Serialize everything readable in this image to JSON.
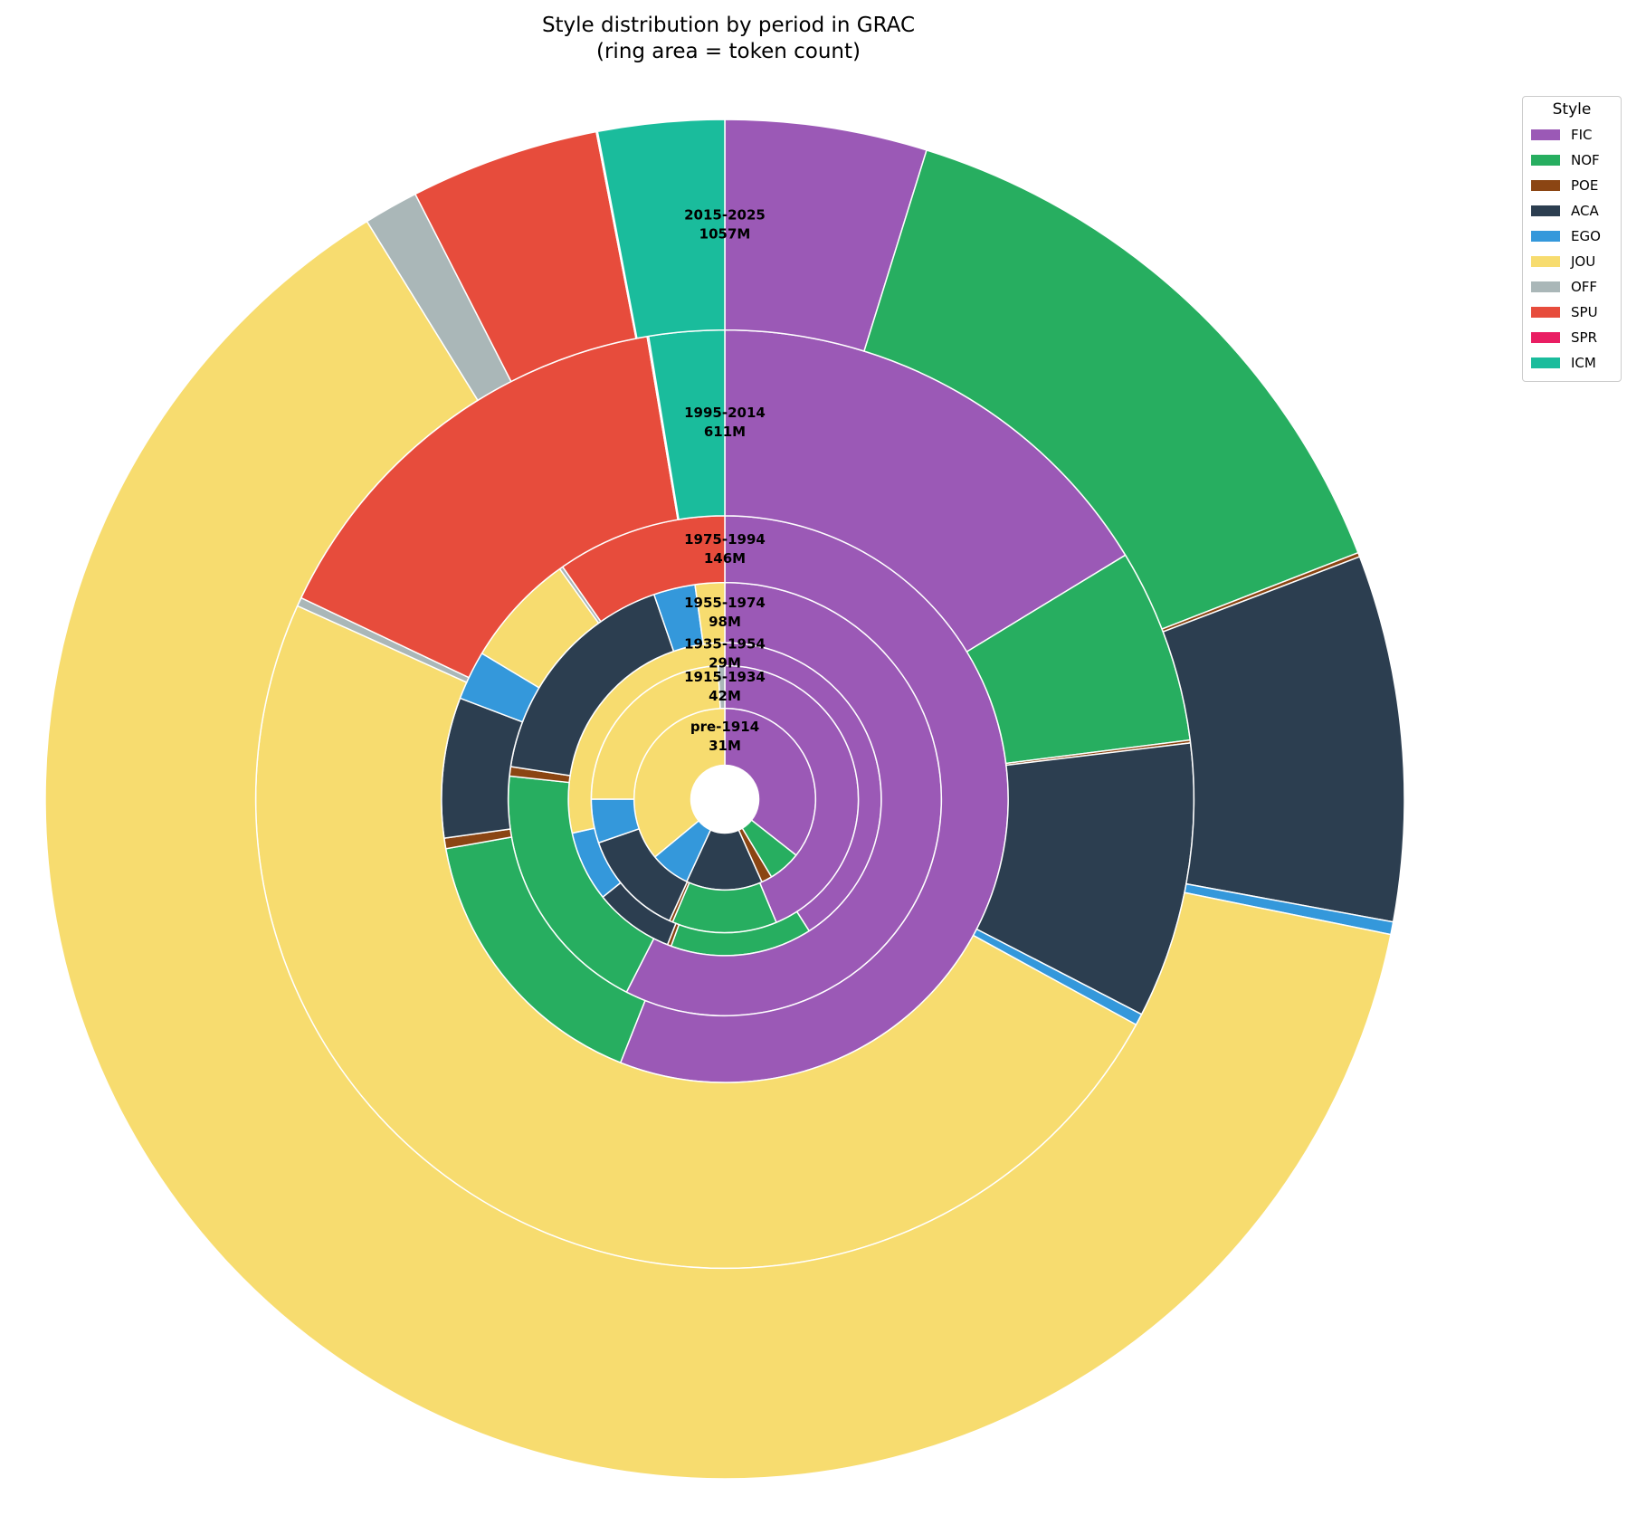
{
  "title_line1": "Style distribution by period in GRAC",
  "title_line2": "(ring area = token count)",
  "chart_data": {
    "type": "nested-donut",
    "title": "Style distribution by period in GRAC (ring area = token count)",
    "legend_title": "Style",
    "legend_position": "top-right",
    "styles": [
      "FIC",
      "NOF",
      "POE",
      "ACA",
      "EGO",
      "JOU",
      "OFF",
      "SPU",
      "SPR",
      "ICM"
    ],
    "colors": {
      "FIC": "#9b59b6",
      "NOF": "#27ae60",
      "POE": "#8b4513",
      "ACA": "#2c3e50",
      "EGO": "#3498db",
      "JOU": "#f7dc6f",
      "OFF": "#aab7b8",
      "SPU": "#e74c3c",
      "SPR": "#e91e63",
      "ICM": "#1abc9c"
    },
    "periods": [
      {
        "label": "pre-1914",
        "tokens_label": "31M",
        "tokens_m": 31,
        "shares": {
          "FIC": 0.356,
          "NOF": 0.058,
          "POE": 0.019,
          "ACA": 0.136,
          "EGO": 0.071,
          "JOU": 0.36,
          "OFF": 0,
          "SPU": 0,
          "SPR": 0,
          "ICM": 0
        }
      },
      {
        "label": "1915-1934",
        "tokens_label": "42M",
        "tokens_m": 42,
        "shares": {
          "FIC": 0.437,
          "NOF": 0.127,
          "POE": 0.004,
          "ACA": 0.129,
          "EGO": 0.053,
          "JOU": 0.242,
          "OFF": 0.008,
          "SPU": 0,
          "SPR": 0,
          "ICM": 0
        }
      },
      {
        "label": "1935-1954",
        "tokens_label": "29M",
        "tokens_m": 29,
        "shares": {
          "FIC": 0.411,
          "NOF": 0.147,
          "POE": 0.004,
          "ACA": 0.083,
          "EGO": 0.073,
          "JOU": 0.286,
          "OFF": 0,
          "SPU": 0,
          "SPR": 0,
          "ICM": 0
        }
      },
      {
        "label": "1955-1974",
        "tokens_label": "98M",
        "tokens_m": 98,
        "shares": {
          "FIC": 0.575,
          "NOF": 0.192,
          "POE": 0.007,
          "ACA": 0.173,
          "EGO": 0.031,
          "JOU": 0.022,
          "OFF": 0,
          "SPU": 0,
          "SPR": 0,
          "ICM": 0
        }
      },
      {
        "label": "1975-1994",
        "tokens_label": "146M",
        "tokens_m": 146,
        "shares": {
          "FIC": 0.56,
          "NOF": 0.162,
          "POE": 0.006,
          "ACA": 0.08,
          "EGO": 0.028,
          "JOU": 0.065,
          "OFF": 0.002,
          "SPU": 0.097,
          "SPR": 0,
          "ICM": 0
        }
      },
      {
        "label": "1995-2014",
        "tokens_label": "611M",
        "tokens_m": 611,
        "shares": {
          "FIC": 0.163,
          "NOF": 0.067,
          "POE": 0.001,
          "ACA": 0.095,
          "EGO": 0.004,
          "JOU": 0.488,
          "OFF": 0.003,
          "SPU": 0.153,
          "SPR": 0.0005,
          "ICM": 0.026
        }
      },
      {
        "label": "2015-2025",
        "tokens_label": "1057M",
        "tokens_m": 1057,
        "shares": {
          "FIC": 0.048,
          "NOF": 0.143,
          "POE": 0.001,
          "ACA": 0.087,
          "EGO": 0.003,
          "JOU": 0.63,
          "OFF": 0.013,
          "SPU": 0.045,
          "SPR": 0.0003,
          "ICM": 0.03
        }
      }
    ]
  }
}
